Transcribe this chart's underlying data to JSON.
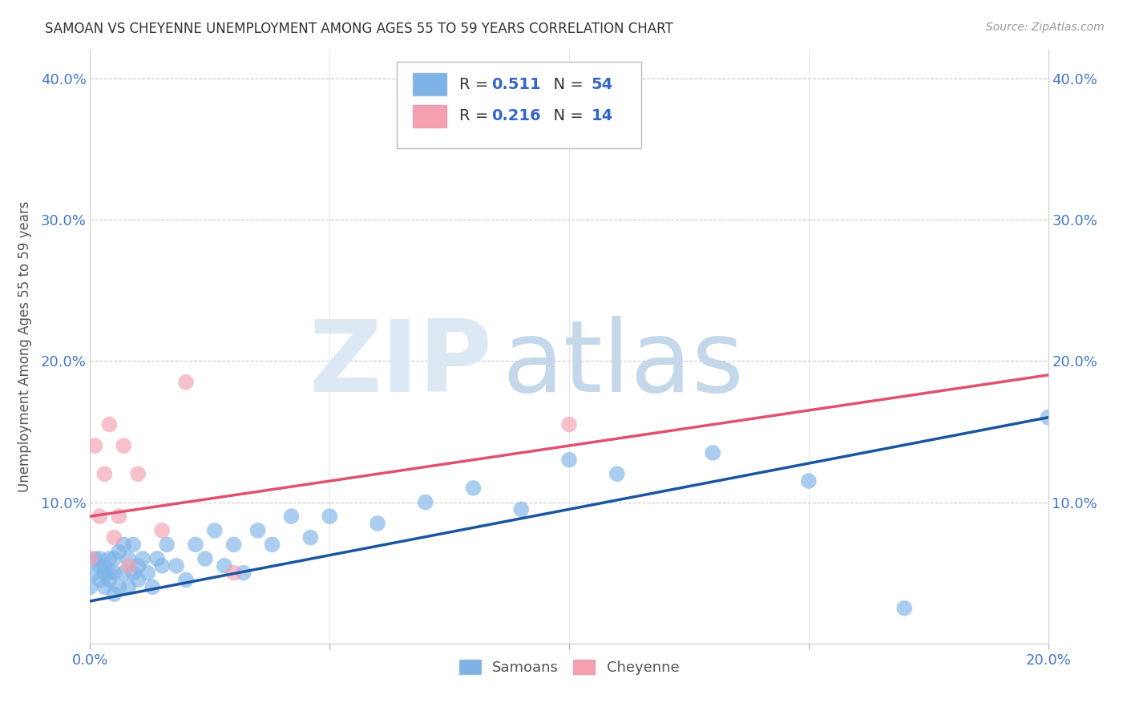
{
  "title": "SAMOAN VS CHEYENNE UNEMPLOYMENT AMONG AGES 55 TO 59 YEARS CORRELATION CHART",
  "source": "Source: ZipAtlas.com",
  "ylabel": "Unemployment Among Ages 55 to 59 years",
  "xlim": [
    0.0,
    0.2
  ],
  "ylim": [
    0.0,
    0.42
  ],
  "xticks": [
    0.0,
    0.05,
    0.1,
    0.15,
    0.2
  ],
  "yticks": [
    0.0,
    0.1,
    0.2,
    0.3,
    0.4
  ],
  "xticklabels": [
    "0.0%",
    "",
    "",
    "",
    "20.0%"
  ],
  "yticklabels_left": [
    "",
    "10.0%",
    "20.0%",
    "30.0%",
    "40.0%"
  ],
  "yticklabels_right": [
    "",
    "10.0%",
    "20.0%",
    "30.0%",
    "40.0%"
  ],
  "samoan_color": "#7eb3e8",
  "cheyenne_color": "#f4a0b0",
  "line_samoan_color": "#1a56a0",
  "line_cheyenne_color": "#e05070",
  "R_samoan": 0.511,
  "N_samoan": 54,
  "R_cheyenne": 0.216,
  "N_cheyenne": 14,
  "samoan_x": [
    0.0,
    0.001,
    0.001,
    0.002,
    0.002,
    0.002,
    0.003,
    0.003,
    0.003,
    0.004,
    0.004,
    0.004,
    0.005,
    0.005,
    0.005,
    0.006,
    0.006,
    0.007,
    0.007,
    0.008,
    0.008,
    0.009,
    0.009,
    0.01,
    0.01,
    0.011,
    0.012,
    0.013,
    0.014,
    0.015,
    0.016,
    0.018,
    0.02,
    0.022,
    0.024,
    0.026,
    0.028,
    0.03,
    0.032,
    0.035,
    0.038,
    0.042,
    0.046,
    0.05,
    0.06,
    0.07,
    0.08,
    0.09,
    0.1,
    0.11,
    0.13,
    0.15,
    0.17,
    0.2
  ],
  "samoan_y": [
    0.04,
    0.05,
    0.06,
    0.045,
    0.055,
    0.06,
    0.04,
    0.05,
    0.055,
    0.045,
    0.05,
    0.06,
    0.035,
    0.05,
    0.06,
    0.04,
    0.065,
    0.05,
    0.07,
    0.04,
    0.06,
    0.05,
    0.07,
    0.045,
    0.055,
    0.06,
    0.05,
    0.04,
    0.06,
    0.055,
    0.07,
    0.055,
    0.045,
    0.07,
    0.06,
    0.08,
    0.055,
    0.07,
    0.05,
    0.08,
    0.07,
    0.09,
    0.075,
    0.09,
    0.085,
    0.1,
    0.11,
    0.095,
    0.13,
    0.12,
    0.135,
    0.115,
    0.025,
    0.16
  ],
  "cheyenne_x": [
    0.0,
    0.001,
    0.002,
    0.003,
    0.004,
    0.005,
    0.006,
    0.007,
    0.008,
    0.01,
    0.015,
    0.02,
    0.03,
    0.1
  ],
  "cheyenne_y": [
    0.06,
    0.14,
    0.09,
    0.12,
    0.155,
    0.075,
    0.09,
    0.14,
    0.055,
    0.12,
    0.08,
    0.185,
    0.05,
    0.155
  ]
}
